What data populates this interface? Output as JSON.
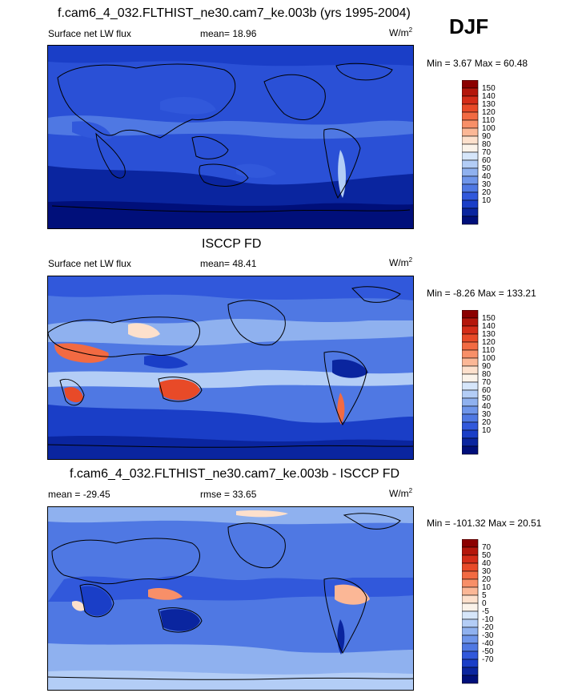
{
  "season": "DJF",
  "panels": [
    {
      "id": "model",
      "title": "f.cam6_4_032.FLTHIST_ne30.cam7_ke.003b (yrs 1995-2004)",
      "left_label": "Surface net LW flux",
      "center_label": "mean=  18.96",
      "units_base": "W/m",
      "units_sup": "2",
      "minmax": "Min =   3.67 Max =  60.48",
      "palette": "absolute"
    },
    {
      "id": "obs",
      "title": "ISCCP FD",
      "left_label": "Surface net LW flux",
      "center_label": "mean=  48.41",
      "units_base": "W/m",
      "units_sup": "2",
      "minmax": "Min =  -8.26 Max = 133.21",
      "palette": "absolute"
    },
    {
      "id": "diff",
      "title": "f.cam6_4_032.FLTHIST_ne30.cam7_ke.003b - ISCCP FD",
      "left_label": "mean = -29.45",
      "center_label": "rmse =  33.65",
      "units_base": "W/m",
      "units_sup": "2",
      "minmax": "Min = -101.32 Max =  20.51",
      "palette": "diff"
    }
  ],
  "colorbars": {
    "absolute": {
      "labels": [
        "150",
        "140",
        "130",
        "120",
        "110",
        "100",
        "90",
        "80",
        "70",
        "60",
        "50",
        "40",
        "30",
        "20",
        "10"
      ],
      "colors": [
        "#8b0000",
        "#b4160b",
        "#d42c18",
        "#e84a28",
        "#f26a42",
        "#f88f68",
        "#fbb796",
        "#fde0cc",
        "#fbf3ea",
        "#d6e6fa",
        "#b3cdf6",
        "#8fb1ef",
        "#6e95ea",
        "#4f78e3",
        "#3158db",
        "#1a3ec7",
        "#0a259f",
        "#000f7a"
      ]
    },
    "diff": {
      "labels": [
        "70",
        "50",
        "40",
        "30",
        "20",
        "10",
        "5",
        "0",
        "-5",
        "-10",
        "-20",
        "-30",
        "-40",
        "-50",
        "-70"
      ],
      "colors": [
        "#8b0000",
        "#b4160b",
        "#d42c18",
        "#e84a28",
        "#f26a42",
        "#f88f68",
        "#fbb796",
        "#fde0cc",
        "#fbf3ea",
        "#d6e6fa",
        "#b3cdf6",
        "#8fb1ef",
        "#6e95ea",
        "#4f78e3",
        "#3158db",
        "#1a3ec7",
        "#0a259f",
        "#000f7a"
      ]
    }
  }
}
